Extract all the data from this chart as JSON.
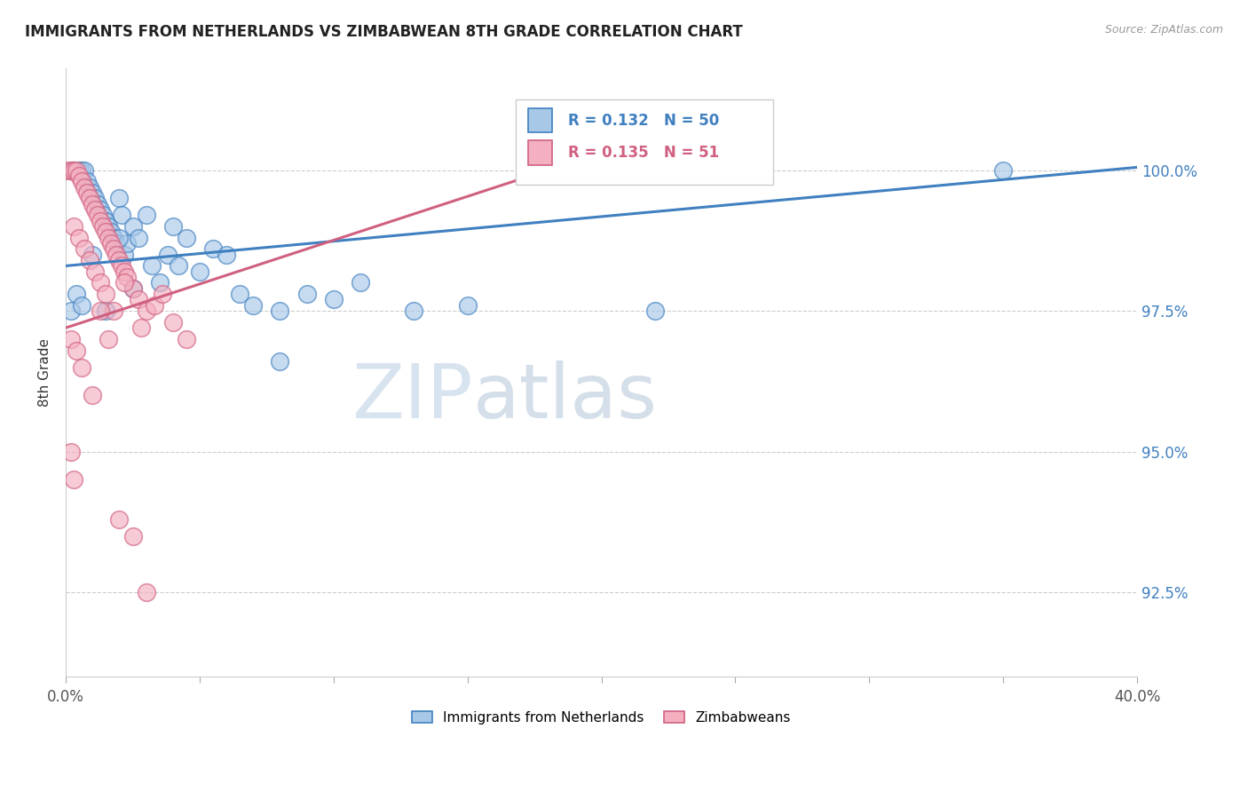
{
  "title": "IMMIGRANTS FROM NETHERLANDS VS ZIMBABWEAN 8TH GRADE CORRELATION CHART",
  "source": "Source: ZipAtlas.com",
  "ylabel": "8th Grade",
  "legend_label1": "Immigrants from Netherlands",
  "legend_label2": "Zimbabweans",
  "R1": 0.132,
  "N1": 50,
  "R2": 0.135,
  "N2": 51,
  "xmin": 0.0,
  "xmax": 0.4,
  "ymin": 91.0,
  "ymax": 101.8,
  "yticks": [
    92.5,
    95.0,
    97.5,
    100.0
  ],
  "color_blue": "#a8c8e8",
  "color_pink": "#f4b0c0",
  "color_line_blue": "#4080c0",
  "color_line_pink": "#d06080",
  "watermark_zip": "ZIP",
  "watermark_atlas": "atlas",
  "blue_trend_x0": 0.0,
  "blue_trend_y0": 98.3,
  "blue_trend_x1": 0.4,
  "blue_trend_y1": 100.05,
  "pink_trend_x0": 0.0,
  "pink_trend_y0": 97.2,
  "pink_trend_x1": 0.18,
  "pink_trend_y1": 100.0,
  "blue_scatter_x": [
    0.003,
    0.005,
    0.006,
    0.007,
    0.008,
    0.009,
    0.01,
    0.011,
    0.012,
    0.013,
    0.014,
    0.015,
    0.016,
    0.017,
    0.018,
    0.019,
    0.02,
    0.021,
    0.022,
    0.023,
    0.025,
    0.027,
    0.03,
    0.032,
    0.035,
    0.038,
    0.04,
    0.042,
    0.045,
    0.05,
    0.055,
    0.06,
    0.065,
    0.07,
    0.08,
    0.09,
    0.1,
    0.11,
    0.13,
    0.15,
    0.002,
    0.004,
    0.006,
    0.01,
    0.015,
    0.02,
    0.025,
    0.35,
    0.08,
    0.22
  ],
  "blue_scatter_y": [
    100.0,
    100.0,
    100.0,
    100.0,
    99.8,
    99.7,
    99.6,
    99.5,
    99.4,
    99.3,
    99.2,
    99.1,
    99.0,
    98.9,
    98.8,
    98.7,
    99.5,
    99.2,
    98.5,
    98.7,
    99.0,
    98.8,
    99.2,
    98.3,
    98.0,
    98.5,
    99.0,
    98.3,
    98.8,
    98.2,
    98.6,
    98.5,
    97.8,
    97.6,
    97.5,
    97.8,
    97.7,
    98.0,
    97.5,
    97.6,
    97.5,
    97.8,
    97.6,
    98.5,
    97.5,
    98.8,
    97.9,
    100.0,
    96.6,
    97.5
  ],
  "pink_scatter_x": [
    0.001,
    0.002,
    0.003,
    0.004,
    0.005,
    0.006,
    0.007,
    0.008,
    0.009,
    0.01,
    0.011,
    0.012,
    0.013,
    0.014,
    0.015,
    0.016,
    0.017,
    0.018,
    0.019,
    0.02,
    0.021,
    0.022,
    0.023,
    0.025,
    0.027,
    0.03,
    0.033,
    0.036,
    0.04,
    0.045,
    0.003,
    0.005,
    0.007,
    0.009,
    0.011,
    0.013,
    0.015,
    0.018,
    0.022,
    0.028,
    0.002,
    0.004,
    0.006,
    0.01,
    0.013,
    0.016,
    0.02,
    0.025,
    0.03,
    0.002,
    0.003
  ],
  "pink_scatter_y": [
    100.0,
    100.0,
    100.0,
    100.0,
    99.9,
    99.8,
    99.7,
    99.6,
    99.5,
    99.4,
    99.3,
    99.2,
    99.1,
    99.0,
    98.9,
    98.8,
    98.7,
    98.6,
    98.5,
    98.4,
    98.3,
    98.2,
    98.1,
    97.9,
    97.7,
    97.5,
    97.6,
    97.8,
    97.3,
    97.0,
    99.0,
    98.8,
    98.6,
    98.4,
    98.2,
    98.0,
    97.8,
    97.5,
    98.0,
    97.2,
    97.0,
    96.8,
    96.5,
    96.0,
    97.5,
    97.0,
    93.8,
    93.5,
    92.5,
    95.0,
    94.5
  ]
}
